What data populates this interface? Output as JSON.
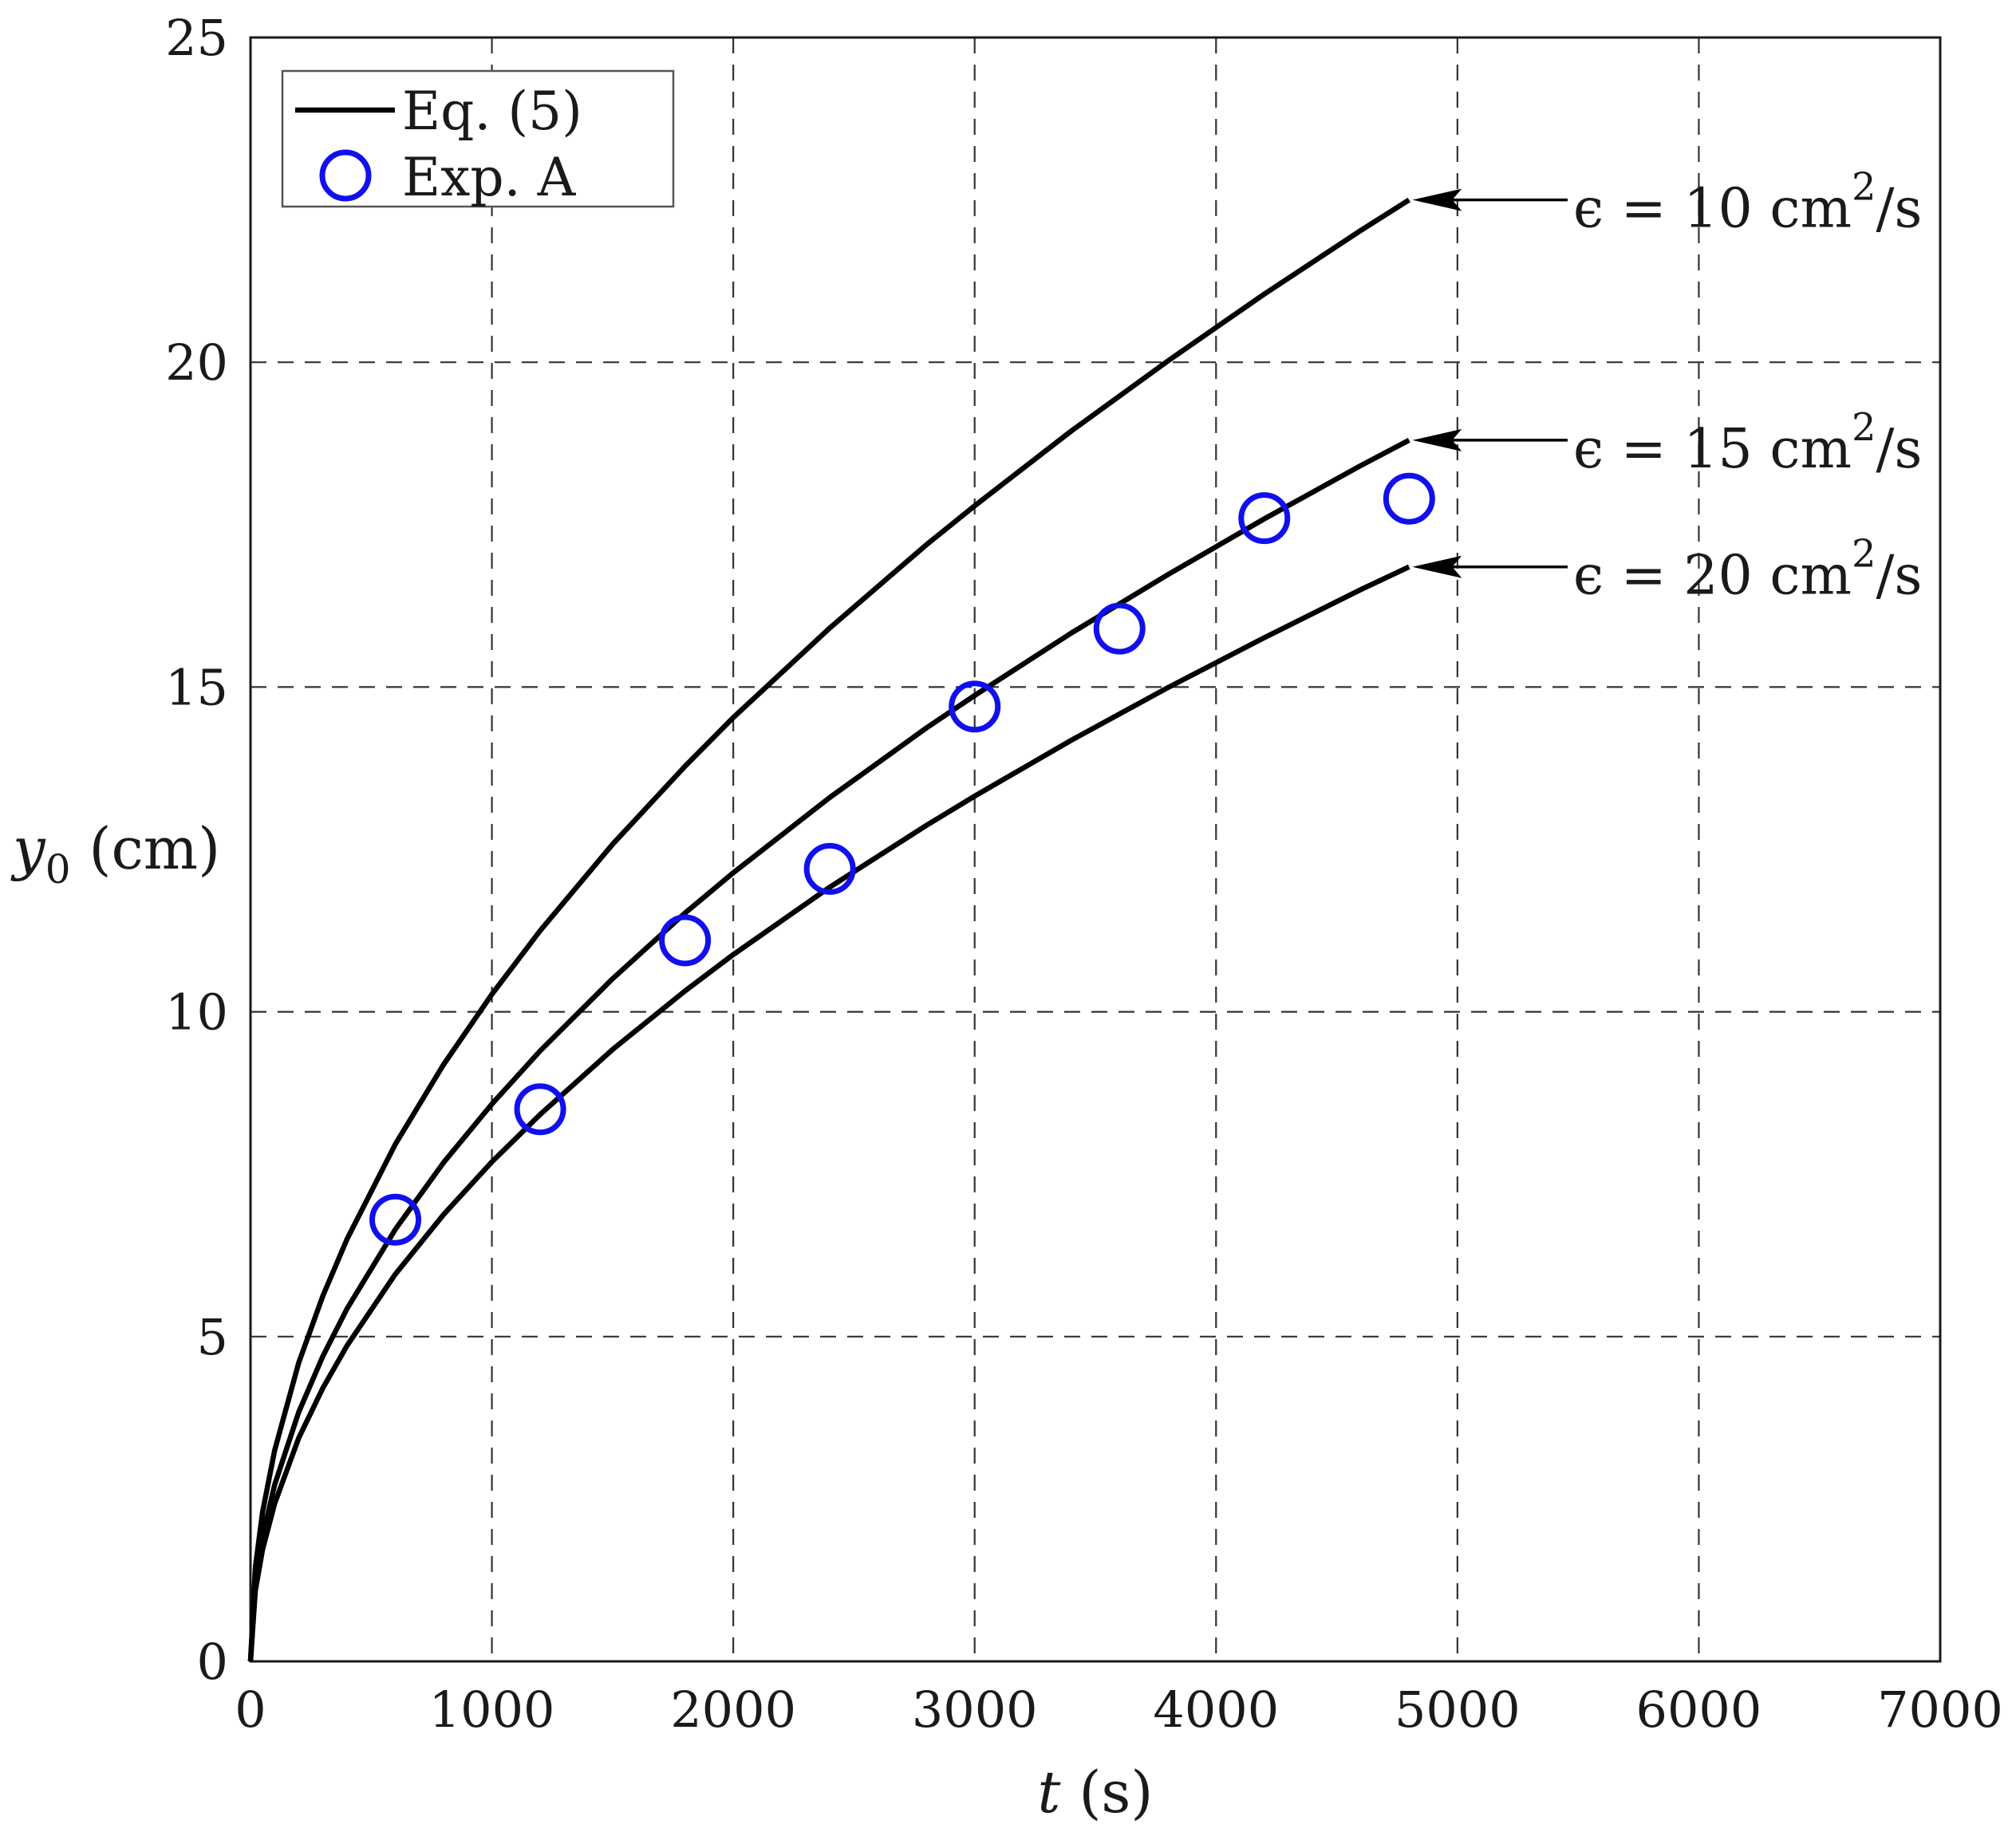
{
  "chart_data": {
    "type": "line",
    "title": "",
    "xlabel": {
      "italic": "t",
      "rest": " (s)"
    },
    "ylabel": {
      "italic": "y",
      "sub": "0",
      "rest": " (cm)"
    },
    "xlim": [
      0,
      7000
    ],
    "ylim": [
      0,
      25
    ],
    "xticks": [
      0,
      1000,
      2000,
      3000,
      4000,
      5000,
      6000,
      7000
    ],
    "yticks": [
      0,
      5,
      10,
      15,
      20,
      25
    ],
    "grid": true,
    "legend": {
      "placement": "top-left",
      "entries": [
        {
          "label": "Eq. (5)",
          "style": "line",
          "color": "#000000"
        },
        {
          "label": "Exp. A",
          "style": "marker",
          "color": "#1010ee"
        }
      ]
    },
    "series": [
      {
        "name": "Eq. (5), ϵ = 10 cm²/s",
        "kind": "curve",
        "color": "#000000",
        "x": [
          0,
          20,
          50,
          100,
          200,
          300,
          400,
          600,
          800,
          1000,
          1200,
          1500,
          1800,
          2000,
          2400,
          2800,
          3000,
          3400,
          3800,
          4200,
          4600,
          4800
        ],
        "y": [
          0,
          1.45,
          2.3,
          3.25,
          4.6,
          5.63,
          6.5,
          7.96,
          9.19,
          10.27,
          11.25,
          12.58,
          13.78,
          14.53,
          15.91,
          17.19,
          17.79,
          18.94,
          20.02,
          21.05,
          22.03,
          22.5
        ]
      },
      {
        "name": "Eq. (5), ϵ = 15 cm²/s",
        "kind": "curve",
        "color": "#000000",
        "x": [
          0,
          20,
          50,
          100,
          200,
          300,
          400,
          600,
          800,
          1000,
          1200,
          1500,
          1800,
          2000,
          2400,
          2800,
          3000,
          3400,
          3800,
          4200,
          4600,
          4800
        ],
        "y": [
          0,
          1.22,
          1.92,
          2.72,
          3.84,
          4.7,
          5.43,
          6.65,
          7.68,
          8.58,
          9.4,
          10.51,
          11.52,
          12.14,
          13.3,
          14.37,
          14.87,
          15.83,
          16.73,
          17.59,
          18.41,
          18.8
        ]
      },
      {
        "name": "Eq. (5), ϵ = 20 cm²/s",
        "kind": "curve",
        "color": "#000000",
        "x": [
          0,
          20,
          50,
          100,
          200,
          300,
          400,
          600,
          800,
          1000,
          1200,
          1500,
          1800,
          2000,
          2400,
          2800,
          3000,
          3400,
          3800,
          4200,
          4600,
          4800
        ],
        "y": [
          0,
          1.09,
          1.72,
          2.43,
          3.44,
          4.21,
          4.86,
          5.96,
          6.88,
          7.69,
          8.42,
          9.42,
          10.32,
          10.88,
          11.92,
          12.87,
          13.32,
          14.18,
          14.99,
          15.76,
          16.5,
          16.85
        ]
      },
      {
        "name": "Exp. A",
        "kind": "markers",
        "color": "#1010ee",
        "x": [
          600,
          1200,
          1800,
          2400,
          3000,
          3600,
          4200,
          4800
        ],
        "y": [
          6.8,
          8.5,
          11.1,
          12.2,
          14.7,
          15.9,
          17.6,
          17.9
        ]
      }
    ],
    "annotations": [
      {
        "prefix": "ϵ = 10 cm",
        "sup": "2",
        "suffix": "/s",
        "arrow_to": {
          "x": 4800,
          "y": 22.5
        }
      },
      {
        "prefix": "ϵ = 15 cm",
        "sup": "2",
        "suffix": "/s",
        "arrow_to": {
          "x": 4800,
          "y": 18.8
        }
      },
      {
        "prefix": "ϵ = 20 cm",
        "sup": "2",
        "suffix": "/s",
        "arrow_to": {
          "x": 4800,
          "y": 16.85
        }
      }
    ]
  }
}
